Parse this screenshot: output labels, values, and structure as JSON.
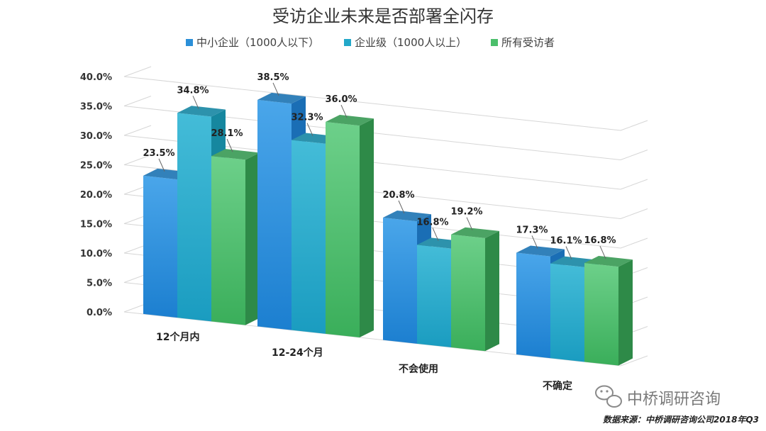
{
  "chart_data": {
    "type": "bar",
    "title": "受访企业未来是否部署全闪存",
    "categories": [
      "12个月内",
      "12-24个月",
      "不会使用",
      "不确定"
    ],
    "series": [
      {
        "name": "中小企业（1000人以下）",
        "color": "#2b8fd8",
        "values": [
          23.5,
          38.5,
          20.8,
          17.3
        ],
        "labels": [
          "23.5%",
          "38.5%",
          "20.8%",
          "17.3%"
        ]
      },
      {
        "name": "企业级（1000人以上）",
        "color": "#23a8c9",
        "values": [
          34.8,
          32.3,
          16.8,
          16.1
        ],
        "labels": [
          "34.8%",
          "32.3%",
          "16.8%",
          "16.1%"
        ]
      },
      {
        "name": "所有受访者",
        "color": "#4bbf6b",
        "values": [
          28.1,
          36.0,
          19.2,
          16.8
        ],
        "labels": [
          "28.1%",
          "36.0%",
          "19.2%",
          "16.8%"
        ]
      }
    ],
    "ylim": [
      0,
      40
    ],
    "yticks": [
      "0.0%",
      "5.0%",
      "10.0%",
      "15.0%",
      "20.0%",
      "25.0%",
      "30.0%",
      "35.0%",
      "40.0%"
    ],
    "grid": true,
    "legend": "top-center"
  },
  "watermark": "中桥调研咨询",
  "source_note": "数据来源：中桥调研咨询公司2018年Q3"
}
